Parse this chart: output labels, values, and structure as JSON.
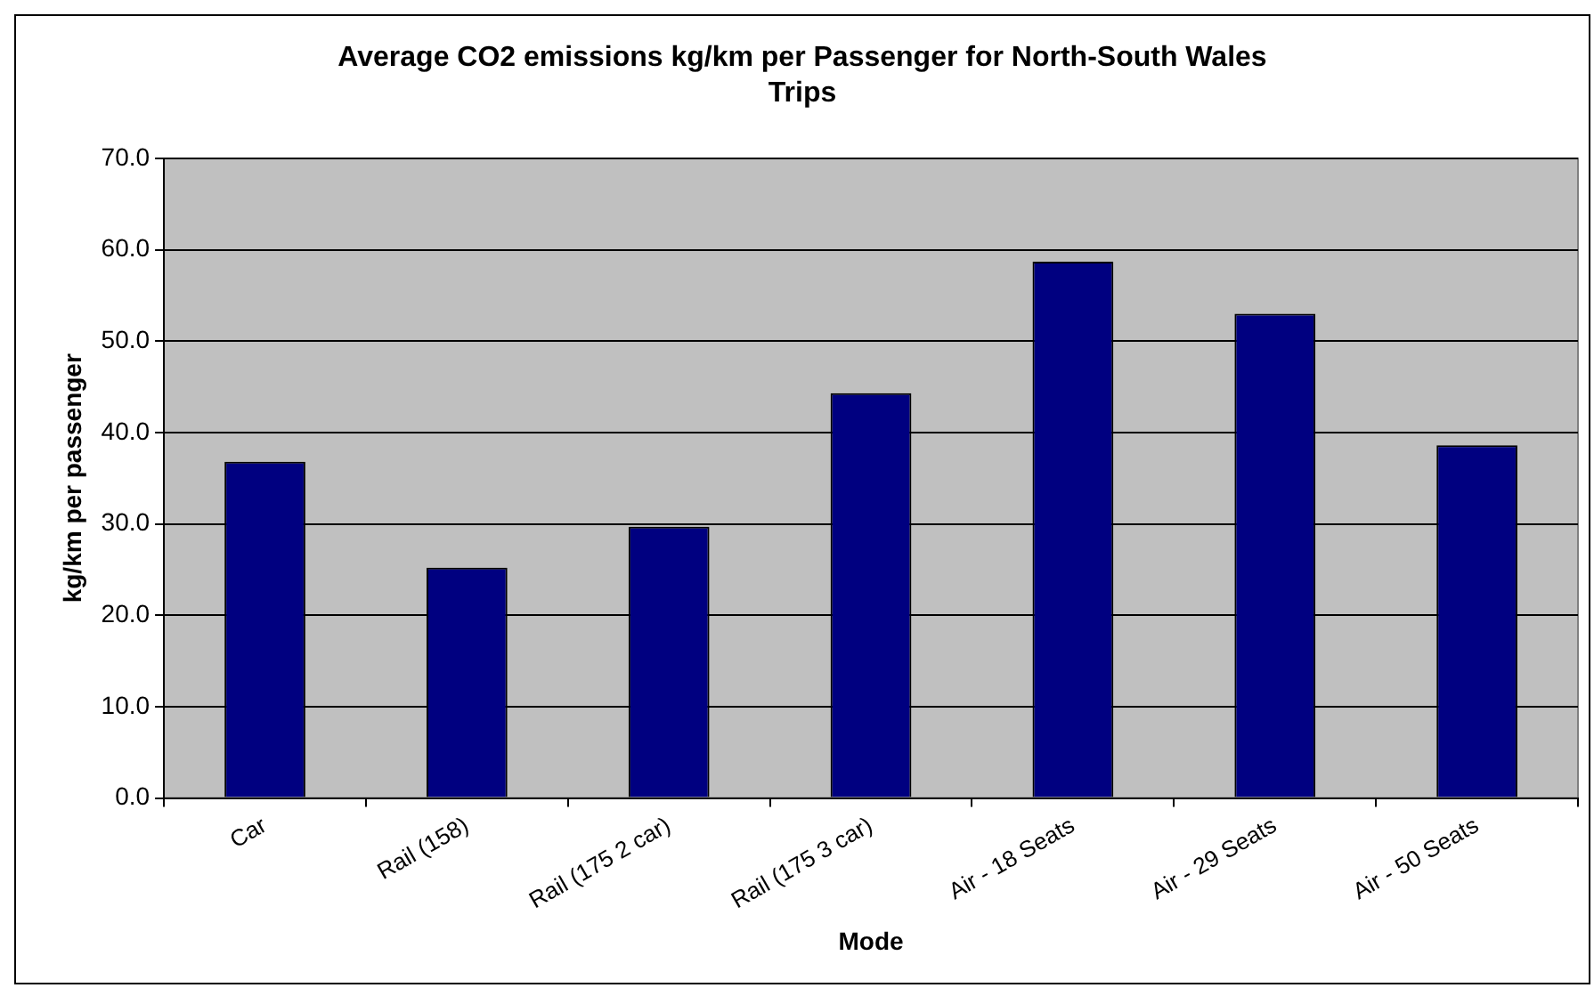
{
  "chart_data": {
    "type": "bar",
    "title": "Average CO2 emissions kg/km per Passenger for North-South Wales Trips",
    "xlabel": "Mode",
    "ylabel": "kg/km per passenger",
    "categories": [
      "Car",
      "Rail (158)",
      "Rail (175 2 car)",
      "Rail (175 3 car)",
      "Air - 18 Seats",
      "Air - 29 Seats",
      "Air - 50 Seats"
    ],
    "values": [
      36.8,
      25.2,
      29.7,
      44.3,
      58.7,
      53.0,
      38.6
    ],
    "color": "#000080",
    "ylim": [
      0,
      70
    ],
    "yticks": [
      {
        "value": 0,
        "label": "0.0"
      },
      {
        "value": 10,
        "label": "10.0"
      },
      {
        "value": 20,
        "label": "20.0"
      },
      {
        "value": 30,
        "label": "30.0"
      },
      {
        "value": 40,
        "label": "40.0"
      },
      {
        "value": 50,
        "label": "50.0"
      },
      {
        "value": 60,
        "label": "60.0"
      },
      {
        "value": 70,
        "label": "70.0"
      }
    ],
    "grid": "y",
    "legend": false
  }
}
